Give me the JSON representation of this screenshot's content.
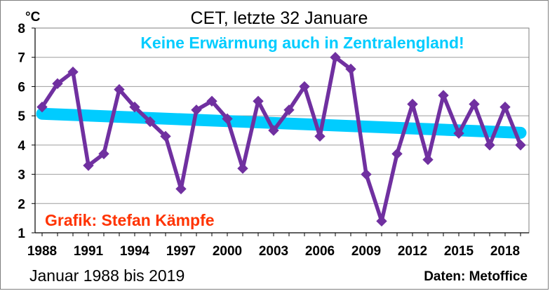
{
  "chart_data": {
    "type": "line",
    "title": "CET, letzte 32 Januare",
    "subtitle": "Keine Erwärmung auch in Zentralengland!",
    "unit_label": "°C",
    "credit": "Grafik: Stefan Kämpfe",
    "footer_left": "Januar 1988 bis 2019",
    "footer_right": "Daten: Metoffice",
    "x": [
      1988,
      1989,
      1990,
      1991,
      1992,
      1993,
      1994,
      1995,
      1996,
      1997,
      1998,
      1999,
      2000,
      2001,
      2002,
      2003,
      2004,
      2005,
      2006,
      2007,
      2008,
      2009,
      2010,
      2011,
      2012,
      2013,
      2014,
      2015,
      2016,
      2017,
      2018,
      2019
    ],
    "x_ticks": [
      "1988",
      "1991",
      "1994",
      "1997",
      "2000",
      "2003",
      "2006",
      "2009",
      "2012",
      "2015",
      "2018"
    ],
    "y_ticks": [
      "8",
      "7",
      "6",
      "5",
      "4",
      "3",
      "2",
      "1"
    ],
    "ylim": [
      1,
      8
    ],
    "grid": "horizontal",
    "series": [
      {
        "values": [
          5.3,
          6.1,
          6.5,
          3.3,
          3.7,
          5.9,
          5.3,
          4.8,
          4.3,
          2.5,
          5.2,
          5.5,
          4.9,
          3.2,
          5.5,
          4.5,
          5.2,
          6.0,
          4.3,
          7.0,
          6.6,
          3.0,
          1.4,
          3.7,
          5.4,
          3.5,
          5.7,
          4.4,
          5.4,
          4.0,
          5.3,
          4.0
        ],
        "color": "#7030a0",
        "marker": "diamond"
      }
    ],
    "trend": {
      "start_value": 5.07,
      "end_value": 4.42,
      "color": "#00ccff"
    },
    "colors": {
      "title": "#000000",
      "subtitle": "#00ccff",
      "credit": "#ff3300",
      "grid": "#9e9e9e"
    }
  }
}
